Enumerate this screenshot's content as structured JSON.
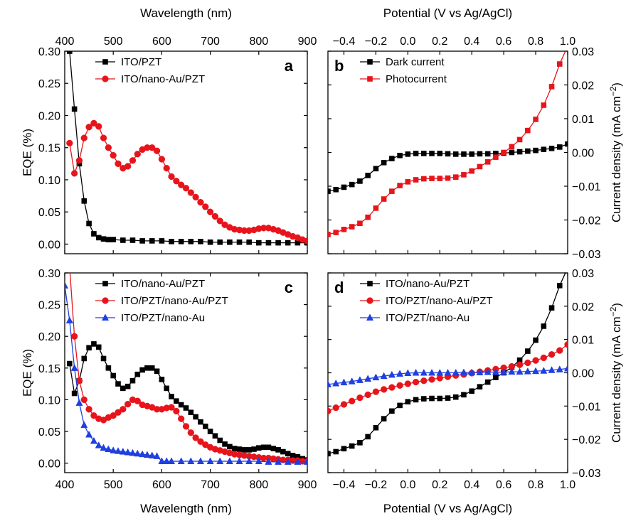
{
  "chart_data": [
    {
      "panel": "a",
      "type": "line",
      "xlabel": "Wavelength (nm)",
      "ylabel": "EQE (%)",
      "xlim": [
        400,
        900
      ],
      "ylim": [
        -0.015,
        0.3
      ],
      "xticks": [
        400,
        500,
        600,
        700,
        800,
        900
      ],
      "yticks": [
        0.0,
        0.05,
        0.1,
        0.15,
        0.2,
        0.25,
        0.3
      ],
      "xtick_labels": [
        "400",
        "500",
        "600",
        "700",
        "800",
        "900"
      ],
      "ytick_labels": [
        "0.00",
        "0.05",
        "0.10",
        "0.15",
        "0.20",
        "0.25",
        "0.30"
      ],
      "legend_position": "top-center",
      "series": [
        {
          "name": "ITO/PZT",
          "color": "#000000",
          "marker": "square",
          "x": [
            410,
            420,
            430,
            440,
            450,
            460,
            470,
            480,
            490,
            500,
            520,
            540,
            560,
            580,
            600,
            620,
            640,
            660,
            680,
            700,
            720,
            740,
            760,
            780,
            800,
            820,
            840,
            860,
            880,
            900
          ],
          "y": [
            0.3,
            0.21,
            0.125,
            0.067,
            0.032,
            0.016,
            0.01,
            0.008,
            0.007,
            0.007,
            0.006,
            0.006,
            0.005,
            0.005,
            0.005,
            0.004,
            0.004,
            0.004,
            0.004,
            0.003,
            0.003,
            0.003,
            0.003,
            0.003,
            0.002,
            0.002,
            0.002,
            0.002,
            0.002,
            0.002
          ]
        },
        {
          "name": "ITO/nano-Au/PZT",
          "color": "#e8141c",
          "marker": "circle",
          "x": [
            410,
            420,
            430,
            440,
            450,
            460,
            470,
            480,
            490,
            500,
            510,
            520,
            530,
            540,
            550,
            560,
            570,
            580,
            590,
            600,
            610,
            620,
            630,
            640,
            650,
            660,
            670,
            680,
            690,
            700,
            710,
            720,
            730,
            740,
            750,
            760,
            770,
            780,
            790,
            800,
            810,
            820,
            830,
            840,
            850,
            860,
            870,
            880,
            890,
            900
          ],
          "y": [
            0.157,
            0.11,
            0.13,
            0.165,
            0.182,
            0.188,
            0.183,
            0.165,
            0.15,
            0.138,
            0.125,
            0.118,
            0.121,
            0.13,
            0.14,
            0.147,
            0.15,
            0.15,
            0.145,
            0.132,
            0.118,
            0.105,
            0.098,
            0.092,
            0.087,
            0.08,
            0.073,
            0.065,
            0.058,
            0.05,
            0.043,
            0.036,
            0.03,
            0.026,
            0.023,
            0.022,
            0.021,
            0.021,
            0.022,
            0.024,
            0.025,
            0.025,
            0.023,
            0.021,
            0.018,
            0.015,
            0.012,
            0.01,
            0.007,
            0.005
          ]
        }
      ]
    },
    {
      "panel": "b",
      "type": "line",
      "xlabel": "Potential (V vs Ag/AgCl)",
      "ylabel": "Current density (mA cm−2)",
      "xlim": [
        -0.5,
        1.0
      ],
      "ylim": [
        -0.03,
        0.03
      ],
      "xticks": [
        -0.4,
        -0.2,
        0.0,
        0.2,
        0.4,
        0.6,
        0.8,
        1.0
      ],
      "yticks": [
        -0.03,
        -0.02,
        -0.01,
        0.0,
        0.01,
        0.02,
        0.03
      ],
      "xtick_labels": [
        "−0.4",
        "−0.2",
        "0.0",
        "0.2",
        "0.4",
        "0.6",
        "0.8",
        "1.0"
      ],
      "ytick_labels": [
        "−0.03",
        "−0.02",
        "−0.01",
        "0.00",
        "0.01",
        "0.02",
        "0.03"
      ],
      "legend_position": "top-left",
      "series": [
        {
          "name": "Dark current",
          "color": "#000000",
          "marker": "square",
          "x": [
            -0.5,
            -0.45,
            -0.4,
            -0.35,
            -0.3,
            -0.25,
            -0.2,
            -0.15,
            -0.1,
            -0.05,
            0.0,
            0.05,
            0.1,
            0.15,
            0.2,
            0.25,
            0.3,
            0.35,
            0.4,
            0.45,
            0.5,
            0.55,
            0.6,
            0.65,
            0.7,
            0.75,
            0.8,
            0.85,
            0.9,
            0.95,
            1.0
          ],
          "y": [
            -0.0115,
            -0.011,
            -0.0103,
            -0.0095,
            -0.0085,
            -0.0068,
            -0.0048,
            -0.003,
            -0.0018,
            -0.0009,
            -0.0005,
            -0.0003,
            -0.0003,
            -0.0003,
            -0.0003,
            -0.0004,
            -0.0005,
            -0.0005,
            -0.0005,
            -0.0004,
            -0.0004,
            -0.0003,
            -0.0002,
            0.0,
            0.0002,
            0.0004,
            0.0006,
            0.0009,
            0.0012,
            0.0016,
            0.0025
          ]
        },
        {
          "name": "Photocurrent",
          "color": "#e8141c",
          "marker": "square",
          "x": [
            -0.5,
            -0.45,
            -0.4,
            -0.35,
            -0.3,
            -0.25,
            -0.2,
            -0.15,
            -0.1,
            -0.05,
            0.0,
            0.05,
            0.1,
            0.15,
            0.2,
            0.25,
            0.3,
            0.35,
            0.4,
            0.45,
            0.5,
            0.55,
            0.6,
            0.65,
            0.7,
            0.75,
            0.8,
            0.85,
            0.9,
            0.95,
            1.0
          ],
          "y": [
            -0.0243,
            -0.0237,
            -0.0228,
            -0.022,
            -0.021,
            -0.0192,
            -0.0165,
            -0.0138,
            -0.0115,
            -0.0098,
            -0.0087,
            -0.0081,
            -0.0078,
            -0.0077,
            -0.0077,
            -0.0076,
            -0.0073,
            -0.0066,
            -0.0055,
            -0.0042,
            -0.0028,
            -0.0014,
            0.0,
            0.0017,
            0.0038,
            0.0065,
            0.0098,
            0.014,
            0.0195,
            0.0262,
            0.0315
          ]
        }
      ]
    },
    {
      "panel": "c",
      "type": "line",
      "xlabel": "Wavelength (nm)",
      "ylabel": "EQE (%)",
      "xlim": [
        400,
        900
      ],
      "ylim": [
        -0.015,
        0.3
      ],
      "xticks": [
        400,
        500,
        600,
        700,
        800,
        900
      ],
      "yticks": [
        0.0,
        0.05,
        0.1,
        0.15,
        0.2,
        0.25,
        0.3
      ],
      "xtick_labels": [
        "400",
        "500",
        "600",
        "700",
        "800",
        "900"
      ],
      "ytick_labels": [
        "0.00",
        "0.05",
        "0.10",
        "0.15",
        "0.20",
        "0.25",
        "0.30"
      ],
      "legend_position": "top-center",
      "series": [
        {
          "name": "ITO/nano-Au/PZT",
          "color": "#000000",
          "marker": "square",
          "x": [
            410,
            420,
            430,
            440,
            450,
            460,
            470,
            480,
            490,
            500,
            510,
            520,
            530,
            540,
            550,
            560,
            570,
            580,
            590,
            600,
            610,
            620,
            630,
            640,
            650,
            660,
            670,
            680,
            690,
            700,
            710,
            720,
            730,
            740,
            750,
            760,
            770,
            780,
            790,
            800,
            810,
            820,
            830,
            840,
            850,
            860,
            870,
            880,
            890,
            900
          ],
          "y": [
            0.157,
            0.11,
            0.13,
            0.165,
            0.182,
            0.188,
            0.183,
            0.165,
            0.15,
            0.138,
            0.125,
            0.118,
            0.121,
            0.13,
            0.14,
            0.147,
            0.15,
            0.15,
            0.145,
            0.132,
            0.118,
            0.105,
            0.098,
            0.092,
            0.087,
            0.08,
            0.073,
            0.065,
            0.058,
            0.05,
            0.043,
            0.036,
            0.03,
            0.026,
            0.023,
            0.022,
            0.021,
            0.021,
            0.022,
            0.024,
            0.025,
            0.025,
            0.023,
            0.021,
            0.018,
            0.015,
            0.012,
            0.01,
            0.007,
            0.005
          ]
        },
        {
          "name": "ITO/PZT/nano-Au/PZT",
          "color": "#e8141c",
          "marker": "circle",
          "x": [
            410,
            420,
            430,
            440,
            450,
            460,
            470,
            480,
            490,
            500,
            510,
            520,
            530,
            540,
            550,
            560,
            570,
            580,
            590,
            600,
            610,
            620,
            630,
            640,
            650,
            660,
            670,
            680,
            690,
            700,
            710,
            720,
            730,
            740,
            750,
            760,
            770,
            780,
            790,
            800,
            810,
            820,
            830,
            840,
            850,
            860,
            870,
            880,
            890,
            900
          ],
          "y": [
            0.31,
            0.2,
            0.13,
            0.1,
            0.085,
            0.075,
            0.07,
            0.068,
            0.072,
            0.075,
            0.08,
            0.085,
            0.093,
            0.1,
            0.098,
            0.092,
            0.09,
            0.088,
            0.085,
            0.085,
            0.087,
            0.088,
            0.082,
            0.07,
            0.058,
            0.048,
            0.04,
            0.034,
            0.029,
            0.025,
            0.022,
            0.02,
            0.018,
            0.016,
            0.014,
            0.013,
            0.012,
            0.011,
            0.01,
            0.009,
            0.008,
            0.008,
            0.007,
            0.006,
            0.005,
            0.005,
            0.004,
            0.004,
            0.003,
            0.003
          ]
        },
        {
          "name": "ITO/PZT/nano-Au",
          "color": "#1f3fe0",
          "marker": "triangle",
          "x": [
            400,
            410,
            420,
            430,
            440,
            450,
            460,
            470,
            480,
            490,
            500,
            510,
            520,
            530,
            540,
            550,
            560,
            570,
            580,
            590,
            600,
            610,
            620,
            640,
            660,
            680,
            700,
            720,
            740,
            760,
            780,
            800,
            820,
            840,
            860,
            880,
            900
          ],
          "y": [
            0.28,
            0.225,
            0.15,
            0.095,
            0.06,
            0.045,
            0.035,
            0.028,
            0.024,
            0.022,
            0.02,
            0.019,
            0.018,
            0.017,
            0.016,
            0.015,
            0.014,
            0.013,
            0.012,
            0.011,
            0.003,
            0.003,
            0.003,
            0.003,
            0.003,
            0.003,
            0.003,
            0.003,
            0.003,
            0.003,
            0.003,
            0.003,
            0.002,
            0.002,
            0.002,
            0.002,
            0.002
          ]
        }
      ]
    },
    {
      "panel": "d",
      "type": "line",
      "xlabel": "Potential (V vs Ag/AgCl)",
      "ylabel": "Current density (mA cm−2)",
      "xlim": [
        -0.5,
        1.0
      ],
      "ylim": [
        -0.03,
        0.03
      ],
      "xticks": [
        -0.4,
        -0.2,
        0.0,
        0.2,
        0.4,
        0.6,
        0.8,
        1.0
      ],
      "yticks": [
        -0.03,
        -0.02,
        -0.01,
        0.0,
        0.01,
        0.02,
        0.03
      ],
      "xtick_labels": [
        "−0.4",
        "−0.2",
        "0.0",
        "0.2",
        "0.4",
        "0.6",
        "0.8",
        "1.0"
      ],
      "ytick_labels": [
        "−0.03",
        "−0.02",
        "−0.01",
        "0.00",
        "0.01",
        "0.02",
        "0.03"
      ],
      "legend_position": "top-left",
      "series": [
        {
          "name": "ITO/nano-Au/PZT",
          "color": "#000000",
          "marker": "square",
          "x": [
            -0.5,
            -0.45,
            -0.4,
            -0.35,
            -0.3,
            -0.25,
            -0.2,
            -0.15,
            -0.1,
            -0.05,
            0.0,
            0.05,
            0.1,
            0.15,
            0.2,
            0.25,
            0.3,
            0.35,
            0.4,
            0.45,
            0.5,
            0.55,
            0.6,
            0.65,
            0.7,
            0.75,
            0.8,
            0.85,
            0.9,
            0.95,
            1.0
          ],
          "y": [
            -0.0243,
            -0.0237,
            -0.0228,
            -0.022,
            -0.021,
            -0.0192,
            -0.0165,
            -0.0138,
            -0.0115,
            -0.0098,
            -0.0087,
            -0.0081,
            -0.0078,
            -0.0077,
            -0.0077,
            -0.0076,
            -0.0073,
            -0.0066,
            -0.0055,
            -0.0042,
            -0.0028,
            -0.0014,
            0.0,
            0.0017,
            0.0038,
            0.0065,
            0.0098,
            0.014,
            0.0195,
            0.0262,
            0.0315
          ]
        },
        {
          "name": "ITO/PZT/nano-Au/PZT",
          "color": "#e8141c",
          "marker": "circle",
          "x": [
            -0.5,
            -0.45,
            -0.4,
            -0.35,
            -0.3,
            -0.25,
            -0.2,
            -0.15,
            -0.1,
            -0.05,
            0.0,
            0.05,
            0.1,
            0.15,
            0.2,
            0.25,
            0.3,
            0.35,
            0.4,
            0.45,
            0.5,
            0.55,
            0.6,
            0.65,
            0.7,
            0.75,
            0.8,
            0.85,
            0.9,
            0.95,
            1.0
          ],
          "y": [
            -0.0115,
            -0.0105,
            -0.0095,
            -0.0085,
            -0.0075,
            -0.0066,
            -0.0057,
            -0.005,
            -0.0044,
            -0.0038,
            -0.0033,
            -0.0028,
            -0.0024,
            -0.002,
            -0.0016,
            -0.0012,
            -0.0008,
            -0.0005,
            -0.0001,
            0.0003,
            0.0007,
            0.0011,
            0.0015,
            0.0019,
            0.0024,
            0.003,
            0.0037,
            0.0045,
            0.0055,
            0.0067,
            0.0085
          ]
        },
        {
          "name": "ITO/PZT/nano-Au",
          "color": "#1f3fe0",
          "marker": "triangle",
          "x": [
            -0.5,
            -0.45,
            -0.4,
            -0.35,
            -0.3,
            -0.25,
            -0.2,
            -0.15,
            -0.1,
            -0.05,
            0.0,
            0.05,
            0.1,
            0.15,
            0.2,
            0.25,
            0.3,
            0.35,
            0.4,
            0.45,
            0.5,
            0.55,
            0.6,
            0.65,
            0.7,
            0.75,
            0.8,
            0.85,
            0.9,
            0.95,
            1.0
          ],
          "y": [
            -0.0035,
            -0.0032,
            -0.0029,
            -0.0026,
            -0.0022,
            -0.0018,
            -0.0014,
            -0.001,
            -0.0006,
            -0.0003,
            -0.0001,
            0.0,
            0.0,
            0.0,
            0.0,
            0.0,
            0.0,
            0.0001,
            0.0001,
            0.0001,
            0.0002,
            0.0002,
            0.0002,
            0.0003,
            0.0003,
            0.0004,
            0.0005,
            0.0006,
            0.0008,
            0.001,
            0.0013
          ]
        }
      ]
    }
  ]
}
